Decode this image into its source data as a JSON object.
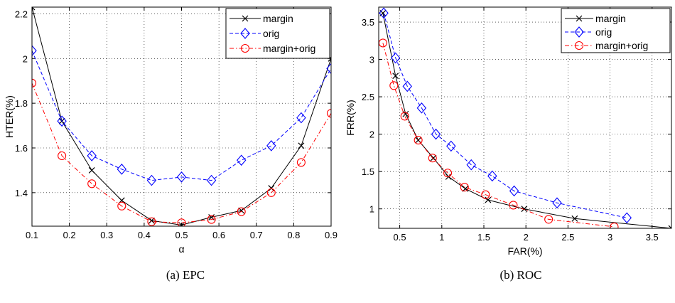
{
  "chart_data": [
    {
      "type": "line",
      "caption": "(a) EPC",
      "xlabel": "α",
      "ylabel": "HTER(%)",
      "xlim": [
        0.1,
        0.9
      ],
      "ylim": [
        1.25,
        2.23
      ],
      "xticks": [
        "0.1",
        "0.2",
        "0.3",
        "0.4",
        "0.5",
        "0.6",
        "0.7",
        "0.8",
        "0.9"
      ],
      "yticks": [
        "1.4",
        "1.6",
        "1.8",
        "2",
        "2.2"
      ],
      "grid": true,
      "legend_position": "top-right",
      "series": [
        {
          "name": "margin",
          "color": "#000000",
          "dash": "solid",
          "marker": "x",
          "x": [
            0.1,
            0.18,
            0.26,
            0.34,
            0.42,
            0.5,
            0.58,
            0.66,
            0.74,
            0.82,
            0.9
          ],
          "y": [
            2.23,
            1.72,
            1.5,
            1.365,
            1.275,
            1.255,
            1.29,
            1.32,
            1.42,
            1.61,
            2.0
          ]
        },
        {
          "name": "orig",
          "color": "#0000ff",
          "dash": "dashed",
          "marker": "diamond",
          "x": [
            0.1,
            0.18,
            0.26,
            0.34,
            0.42,
            0.5,
            0.58,
            0.66,
            0.74,
            0.82,
            0.9
          ],
          "y": [
            2.035,
            1.72,
            1.565,
            1.505,
            1.455,
            1.47,
            1.455,
            1.545,
            1.61,
            1.735,
            1.955
          ]
        },
        {
          "name": "margin+orig",
          "color": "#ff0000",
          "dash": "dashdot",
          "marker": "circle",
          "x": [
            0.1,
            0.18,
            0.26,
            0.34,
            0.42,
            0.5,
            0.58,
            0.66,
            0.74,
            0.82,
            0.9
          ],
          "y": [
            1.89,
            1.565,
            1.44,
            1.34,
            1.27,
            1.265,
            1.28,
            1.315,
            1.4,
            1.535,
            1.755
          ]
        }
      ]
    },
    {
      "type": "line",
      "caption": "(b) ROC",
      "xlabel": "FAR(%)",
      "ylabel": "FRR(%)",
      "xlim": [
        0.25,
        3.73
      ],
      "ylim": [
        0.74,
        3.7
      ],
      "xticks": [
        "0.5",
        "1",
        "1.5",
        "2",
        "2.5",
        "3",
        "3.5"
      ],
      "yticks": [
        "1",
        "1.5",
        "2",
        "2.5",
        "3",
        "3.5"
      ],
      "grid": true,
      "legend_position": "top-right",
      "series": [
        {
          "name": "margin",
          "color": "#000000",
          "dash": "solid",
          "marker": "x",
          "x": [
            0.3,
            0.45,
            0.57,
            0.72,
            0.9,
            1.08,
            1.28,
            1.55,
            1.98,
            2.58,
            3.73
          ],
          "y": [
            3.62,
            2.78,
            2.27,
            1.92,
            1.68,
            1.43,
            1.27,
            1.12,
            1.0,
            0.87,
            0.74
          ]
        },
        {
          "name": "orig",
          "color": "#0000ff",
          "dash": "dashed",
          "marker": "diamond",
          "x": [
            0.31,
            0.45,
            0.59,
            0.76,
            0.93,
            1.11,
            1.35,
            1.6,
            1.86,
            2.37,
            3.2
          ],
          "y": [
            3.62,
            3.02,
            2.64,
            2.35,
            2.0,
            1.84,
            1.59,
            1.44,
            1.24,
            1.08,
            0.88
          ]
        },
        {
          "name": "margin+orig",
          "color": "#ff0000",
          "dash": "dashdot",
          "marker": "circle",
          "x": [
            0.3,
            0.43,
            0.56,
            0.72,
            0.89,
            1.07,
            1.27,
            1.52,
            1.85,
            2.27,
            3.05
          ],
          "y": [
            3.22,
            2.65,
            2.24,
            1.92,
            1.68,
            1.48,
            1.29,
            1.19,
            1.05,
            0.86,
            0.76
          ]
        }
      ]
    }
  ]
}
